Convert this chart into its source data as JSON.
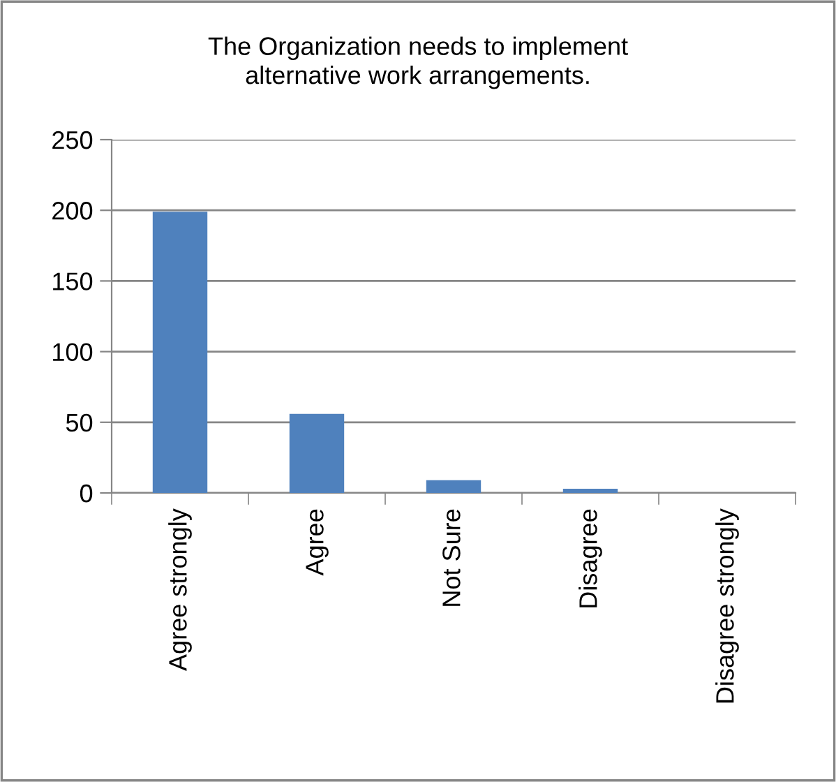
{
  "chart_data": {
    "type": "bar",
    "title": "The Organization needs to implement\nalternative work arrangements.",
    "categories": [
      "Agree strongly",
      "Agree",
      "Not Sure",
      "Disagree",
      "Disagree strongly"
    ],
    "values": [
      199,
      56,
      9,
      3,
      0
    ],
    "color": "#4f81bd",
    "ylim": [
      0,
      250
    ],
    "yticks": [
      0,
      50,
      100,
      150,
      200,
      250
    ],
    "grid": "y",
    "legend": false
  }
}
